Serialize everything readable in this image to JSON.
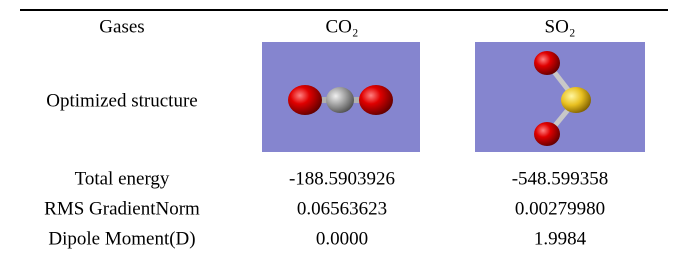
{
  "table": {
    "header": [
      "Gases",
      "CO₂",
      "SO₂"
    ],
    "structure_label": "Optimized structure",
    "rows": [
      [
        "Total energy",
        "-188.5903926",
        "-548.599358"
      ],
      [
        "RMS GradientNorm",
        "0.06563623",
        "0.00279980"
      ],
      [
        "Dipole Moment(D)",
        "0.0000",
        "1.9984"
      ]
    ]
  }
}
